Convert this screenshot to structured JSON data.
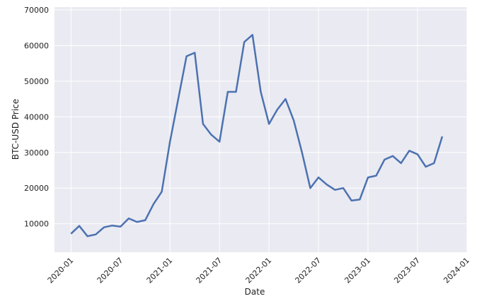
{
  "chart_data": {
    "type": "line",
    "x_label": "Date",
    "y_label": "BTC-USD Price",
    "x": [
      "2020-01",
      "2020-02",
      "2020-03",
      "2020-04",
      "2020-05",
      "2020-06",
      "2020-07",
      "2020-08",
      "2020-09",
      "2020-10",
      "2020-11",
      "2020-12",
      "2021-01",
      "2021-02",
      "2021-03",
      "2021-04",
      "2021-05",
      "2021-06",
      "2021-07",
      "2021-08",
      "2021-09",
      "2021-10",
      "2021-11",
      "2021-12",
      "2022-01",
      "2022-02",
      "2022-03",
      "2022-04",
      "2022-05",
      "2022-06",
      "2022-07",
      "2022-08",
      "2022-09",
      "2022-10",
      "2022-11",
      "2022-12",
      "2023-01",
      "2023-02",
      "2023-03",
      "2023-04",
      "2023-05",
      "2023-06",
      "2023-07",
      "2023-08",
      "2023-09",
      "2023-10"
    ],
    "series": [
      {
        "name": "BTC-USD",
        "color": "#4c72b0",
        "values": [
          7200,
          9400,
          6500,
          7000,
          9000,
          9500,
          9200,
          11500,
          10500,
          11000,
          15500,
          19000,
          33000,
          45000,
          57000,
          58000,
          38000,
          35000,
          33000,
          47000,
          47000,
          61000,
          63000,
          47000,
          38000,
          42000,
          45000,
          39000,
          30000,
          20000,
          23000,
          21000,
          19500,
          20000,
          16500,
          16800,
          23000,
          23500,
          28000,
          29000,
          27000,
          30500,
          29500,
          26000,
          27000,
          34500
        ]
      }
    ],
    "xlim": [
      "2019-11",
      "2024-01"
    ],
    "xticks": [
      "2020-01",
      "2020-07",
      "2021-01",
      "2021-07",
      "2022-01",
      "2022-07",
      "2023-01",
      "2023-07",
      "2024-01"
    ],
    "ylim": [
      2000,
      70800
    ],
    "yticks": [
      10000,
      20000,
      30000,
      40000,
      50000,
      60000,
      70000
    ],
    "grid": true
  }
}
